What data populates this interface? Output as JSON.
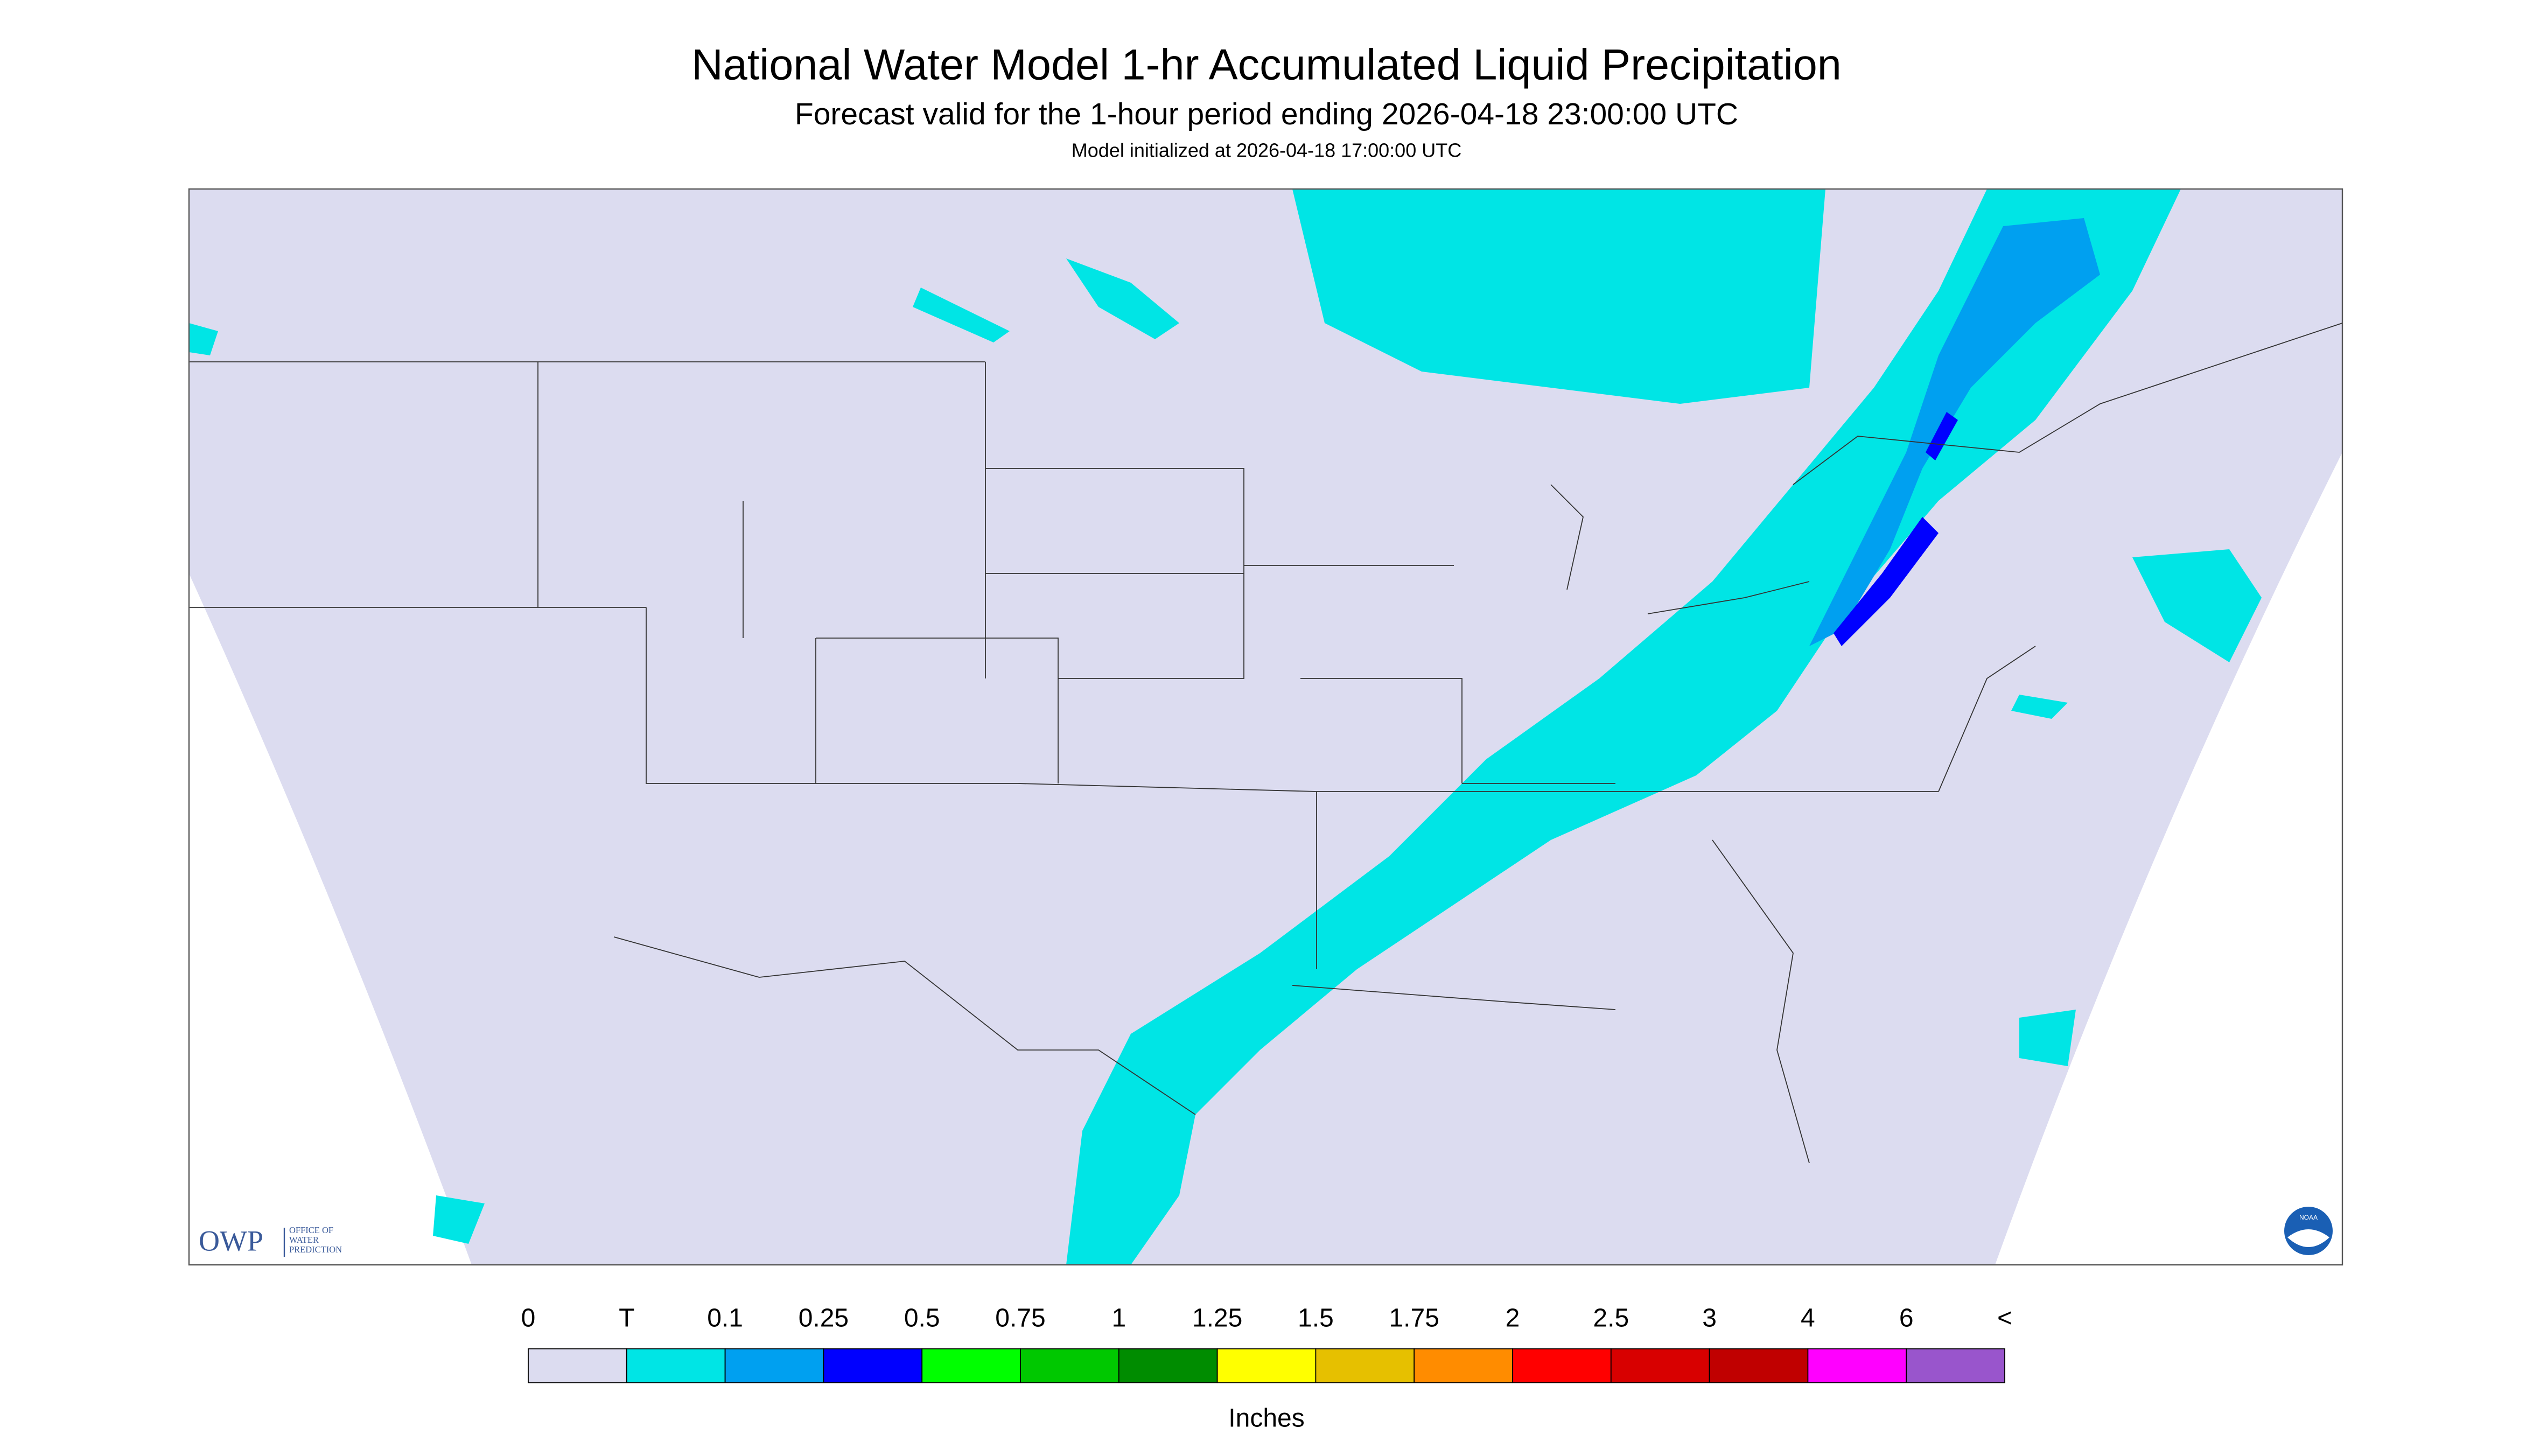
{
  "header": {
    "title": "National Water Model 1-hr Accumulated Liquid Precipitation",
    "subtitle": "Forecast valid for the 1-hour period ending 2026-04-18 23:00:00 UTC",
    "init": "Model initialized at 2026-04-18 17:00:00 UTC"
  },
  "logos": {
    "owp": "OWP",
    "owp_lines": [
      "OFFICE OF",
      "WATER",
      "PREDICTION"
    ],
    "noaa": "NOAA"
  },
  "legend": {
    "labels": [
      "0",
      "T",
      "0.1",
      "0.25",
      "0.5",
      "0.75",
      "1",
      "1.25",
      "1.5",
      "1.75",
      "2",
      "2.5",
      "3",
      "4",
      "6",
      "<"
    ],
    "colors": [
      "#dcdcf0",
      "#00e5e5",
      "#00a0f0",
      "#0000ff",
      "#00ff00",
      "#00c800",
      "#008c00",
      "#ffff00",
      "#e6c000",
      "#ff8c00",
      "#ff0000",
      "#d80000",
      "#c00000",
      "#ff00ff",
      "#9955cc"
    ],
    "unit": "Inches"
  }
}
